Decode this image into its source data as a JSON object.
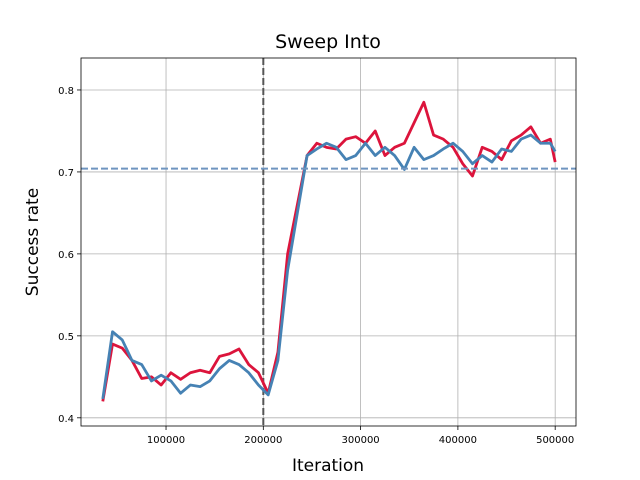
{
  "chart_data": {
    "type": "line",
    "title": "Sweep Into",
    "xlabel": "Iteration",
    "ylabel": "Success rate",
    "x": [
      35000,
      45000,
      55000,
      65000,
      75000,
      85000,
      95000,
      105000,
      115000,
      125000,
      135000,
      145000,
      155000,
      165000,
      175000,
      185000,
      195000,
      205000,
      215000,
      225000,
      235000,
      245000,
      255000,
      265000,
      275000,
      285000,
      295000,
      305000,
      315000,
      325000,
      335000,
      345000,
      355000,
      365000,
      375000,
      385000,
      395000,
      405000,
      415000,
      425000,
      435000,
      445000,
      455000,
      465000,
      475000,
      485000,
      495000,
      500000
    ],
    "series": [
      {
        "color": "#dc143c",
        "values": [
          0.42,
          0.49,
          0.485,
          0.47,
          0.448,
          0.45,
          0.44,
          0.455,
          0.447,
          0.455,
          0.458,
          0.455,
          0.475,
          0.478,
          0.484,
          0.465,
          0.455,
          0.43,
          0.48,
          0.6,
          0.66,
          0.72,
          0.735,
          0.73,
          0.728,
          0.74,
          0.743,
          0.735,
          0.75,
          0.72,
          0.73,
          0.735,
          0.76,
          0.785,
          0.745,
          0.74,
          0.73,
          0.71,
          0.695,
          0.73,
          0.725,
          0.715,
          0.738,
          0.745,
          0.755,
          0.735,
          0.74,
          0.712
        ]
      },
      {
        "color": "#4682b4",
        "values": [
          0.423,
          0.505,
          0.495,
          0.47,
          0.465,
          0.445,
          0.452,
          0.445,
          0.43,
          0.44,
          0.438,
          0.445,
          0.46,
          0.47,
          0.465,
          0.455,
          0.44,
          0.428,
          0.47,
          0.58,
          0.65,
          0.72,
          0.728,
          0.735,
          0.73,
          0.715,
          0.72,
          0.735,
          0.72,
          0.73,
          0.72,
          0.703,
          0.73,
          0.715,
          0.72,
          0.728,
          0.735,
          0.725,
          0.71,
          0.72,
          0.712,
          0.728,
          0.725,
          0.74,
          0.745,
          0.735,
          0.735,
          0.725
        ]
      }
    ],
    "reference_lines": {
      "y": 0.704,
      "y_color": "#6f95c0",
      "x": 200000,
      "x_color": "#555555"
    },
    "xlim": [
      12600,
      521400
    ],
    "ylim": [
      0.39,
      0.839
    ],
    "xticks": [
      100000,
      200000,
      300000,
      400000,
      500000
    ],
    "yticks": [
      0.4,
      0.5,
      0.6,
      0.7,
      0.8
    ],
    "grid": true
  }
}
